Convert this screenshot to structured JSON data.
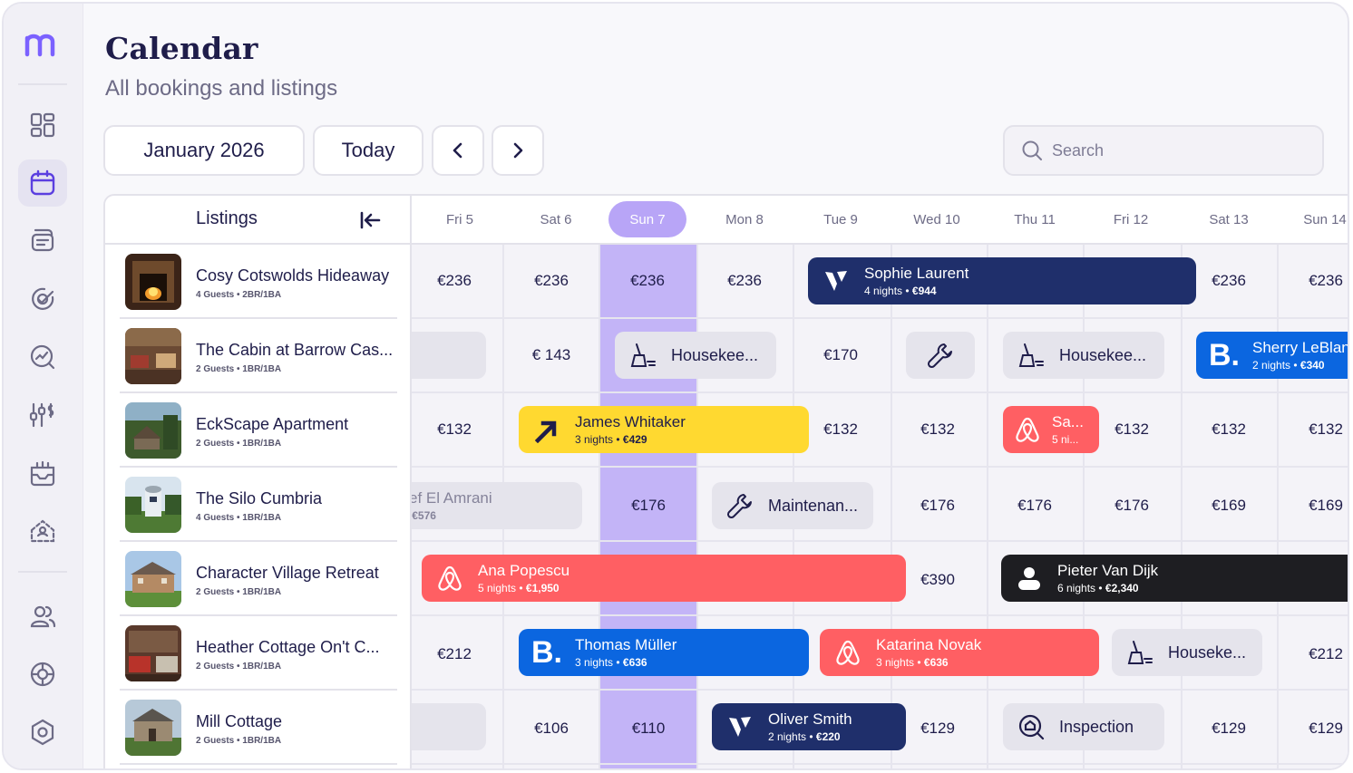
{
  "header": {
    "title": "Calendar",
    "subtitle": "All bookings and listings",
    "month_label": "January 2026",
    "today_label": "Today",
    "search_placeholder": "Search"
  },
  "sidebar": {
    "items": [
      "dashboard-icon",
      "calendar-icon",
      "messages-icon",
      "tasks-icon",
      "analytics-icon",
      "pricing-icon",
      "payouts-icon",
      "listings-icon",
      "guests-icon",
      "channels-icon",
      "settings-icon"
    ],
    "active": "calendar-icon",
    "accent": "#7b61ff"
  },
  "listings_header": "Listings",
  "days": [
    "Fri 5",
    "Sat 6",
    "Sun 7",
    "Mon 8",
    "Tue 9",
    "Wed 10",
    "Thu 11",
    "Fri 12",
    "Sat 13",
    "Sun 14"
  ],
  "today_index": 2,
  "listings": [
    {
      "name": "Cosy Cotswolds Hideaway",
      "meta": "4 Guests • 2BR/1BA"
    },
    {
      "name": "The Cabin at Barrow Cas...",
      "meta": "2 Guests • 1BR/1BA"
    },
    {
      "name": "EckScape Apartment",
      "meta": "2 Guests • 1BR/1BA"
    },
    {
      "name": "The Silo Cumbria",
      "meta": "4 Guests • 1BR/1BA"
    },
    {
      "name": "Character Village Retreat",
      "meta": "2 Guests • 1BR/1BA"
    },
    {
      "name": "Heather Cottage On't C...",
      "meta": "2 Guests • 1BR/1BA"
    },
    {
      "name": "Mill Cottage",
      "meta": "2 Guests • 1BR/1BA"
    }
  ],
  "prices": [
    [
      "€236",
      "€236",
      "€236",
      "€236",
      "",
      "",
      "",
      "",
      "€236",
      "€236"
    ],
    [
      "",
      "€ 143",
      "",
      "",
      "€170",
      "",
      "",
      "",
      "",
      ""
    ],
    [
      "€132",
      "",
      "",
      "",
      "€132",
      "€132",
      "",
      "€132",
      "€132",
      "€132"
    ],
    [
      "",
      "",
      "€176",
      "",
      "",
      "€176",
      "€176",
      "€176",
      "€169",
      "€169"
    ],
    [
      "",
      "",
      "",
      "",
      "",
      "€390",
      "",
      "",
      "",
      ""
    ],
    [
      "€212",
      "",
      "",
      "",
      "",
      "",
      "",
      "",
      "",
      "€212"
    ],
    [
      "",
      "€106",
      "€110",
      "",
      "",
      "€129",
      "",
      "",
      "€129",
      "€129"
    ]
  ],
  "bookings": [
    {
      "guest": "Sophie Laurent",
      "nights": "4 nights",
      "amount": "€944",
      "source": "vrbo",
      "color": "#1f2f6b"
    },
    {
      "guest": "Sherry LeBlanc",
      "nights": "2 nights",
      "amount": "€340",
      "source": "booking.com",
      "color": "#0b66e0"
    },
    {
      "guest": "James Whitaker",
      "nights": "3 nights",
      "amount": "€429",
      "source": "expedia",
      "color": "#ffd930"
    },
    {
      "guest": "Sa...",
      "nights": "5 ni...",
      "amount": "",
      "source": "airbnb",
      "color": "#ff5f63"
    },
    {
      "guest": "ssef El Amrani",
      "nights": "ts",
      "amount": "€576",
      "source": "past",
      "color": "#e5e4ec"
    },
    {
      "guest": "Ana Popescu",
      "nights": "5 nights",
      "amount": "€1,950",
      "source": "airbnb",
      "color": "#ff5f63"
    },
    {
      "guest": "Pieter Van Dijk",
      "nights": "6 nights",
      "amount": "€2,340",
      "source": "direct",
      "color": "#1e1e22"
    },
    {
      "guest": "Thomas Müller",
      "nights": "3 nights",
      "amount": "€636",
      "source": "booking.com",
      "color": "#0b66e0"
    },
    {
      "guest": "Katarina Novak",
      "nights": "3 nights",
      "amount": "€636",
      "source": "airbnb",
      "color": "#ff5f63"
    },
    {
      "guest": "Oliver Smith",
      "nights": "2 nights",
      "amount": "€220",
      "source": "vrbo",
      "color": "#1f2f6b"
    }
  ],
  "tasks": [
    {
      "label": "Housekee...",
      "icon": "broom-icon"
    },
    {
      "label": "",
      "icon": "wrench-icon"
    },
    {
      "label": "Housekee...",
      "icon": "broom-icon"
    },
    {
      "label": "Maintenan...",
      "icon": "wrench-icon"
    },
    {
      "label": "Houseke...",
      "icon": "broom-icon"
    },
    {
      "label": "Inspection",
      "icon": "inspection-icon"
    }
  ]
}
